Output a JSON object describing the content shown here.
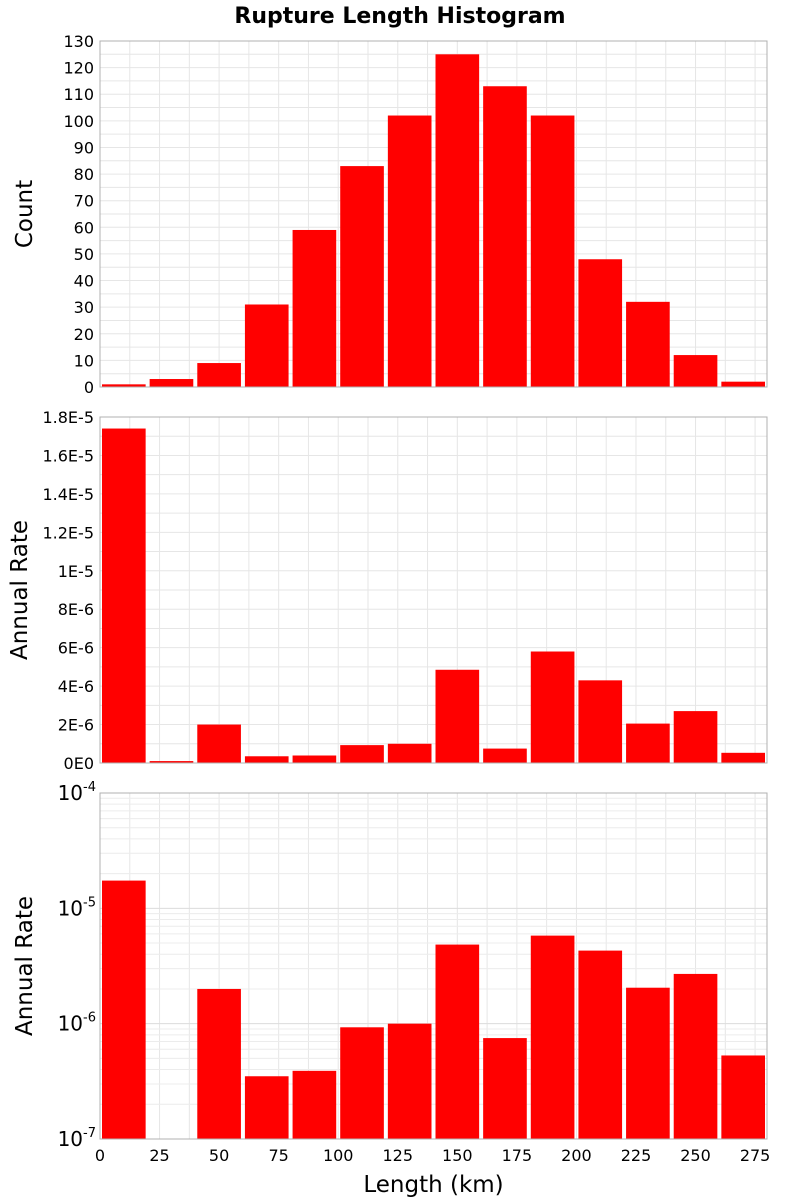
{
  "title": "Rupture Length Histogram",
  "chart_data": [
    {
      "type": "bar",
      "ylabel": "Count",
      "xlabel": "",
      "bin_width": 20,
      "x": [
        10,
        30,
        50,
        70,
        90,
        110,
        130,
        150,
        170,
        190,
        210,
        230,
        250,
        270
      ],
      "values": [
        1,
        3,
        9,
        31,
        59,
        83,
        102,
        125,
        113,
        102,
        48,
        32,
        12,
        2
      ],
      "xlim": [
        0,
        280
      ],
      "ylim": [
        0,
        130
      ],
      "yscale": "linear",
      "y_ticks": [
        0,
        10,
        20,
        30,
        40,
        50,
        60,
        70,
        80,
        90,
        100,
        110,
        120,
        130
      ],
      "y_tick_labels": [
        "0",
        "10",
        "20",
        "30",
        "40",
        "50",
        "60",
        "70",
        "80",
        "90",
        "100",
        "110",
        "120",
        "130"
      ],
      "grid": true,
      "color": "#ff0000"
    },
    {
      "type": "bar",
      "ylabel": "Annual Rate",
      "xlabel": "",
      "bin_width": 20,
      "x": [
        10,
        30,
        50,
        70,
        90,
        110,
        130,
        150,
        170,
        190,
        210,
        230,
        250,
        270
      ],
      "values": [
        1.74e-05,
        1e-07,
        2e-06,
        3.5e-07,
        3.9e-07,
        9.3e-07,
        1e-06,
        4.85e-06,
        7.5e-07,
        5.8e-06,
        4.3e-06,
        2.05e-06,
        2.7e-06,
        5.3e-07
      ],
      "xlim": [
        0,
        280
      ],
      "ylim": [
        0,
        1.8e-05
      ],
      "yscale": "linear",
      "y_ticks": [
        0,
        2e-06,
        4e-06,
        6e-06,
        8e-06,
        1e-05,
        1.2e-05,
        1.4e-05,
        1.6e-05,
        1.8e-05
      ],
      "y_tick_labels": [
        "0E0",
        "2E-6",
        "4E-6",
        "6E-6",
        "8E-6",
        "1E-5",
        "1.2E-5",
        "1.4E-5",
        "1.6E-5",
        "1.8E-5"
      ],
      "grid": true,
      "color": "#ff0000"
    },
    {
      "type": "bar",
      "ylabel": "Annual Rate",
      "xlabel": "Length (km)",
      "bin_width": 20,
      "x": [
        10,
        30,
        50,
        70,
        90,
        110,
        130,
        150,
        170,
        190,
        210,
        230,
        250,
        270
      ],
      "values": [
        1.74e-05,
        1e-07,
        2e-06,
        3.5e-07,
        3.9e-07,
        9.3e-07,
        1e-06,
        4.85e-06,
        7.5e-07,
        5.8e-06,
        4.3e-06,
        2.05e-06,
        2.7e-06,
        5.3e-07
      ],
      "xlim": [
        0,
        280
      ],
      "ylim": [
        1e-07,
        0.0001
      ],
      "yscale": "log",
      "y_ticks": [
        1e-07,
        1e-06,
        1e-05,
        0.0001
      ],
      "y_tick_labels": [
        {
          "base": "10",
          "exp": "-7"
        },
        {
          "base": "10",
          "exp": "-6"
        },
        {
          "base": "10",
          "exp": "-5"
        },
        {
          "base": "10",
          "exp": "-4"
        }
      ],
      "x_ticks": [
        0,
        25,
        50,
        75,
        100,
        125,
        150,
        175,
        200,
        225,
        250,
        275
      ],
      "x_tick_labels": [
        "0",
        "25",
        "50",
        "75",
        "100",
        "125",
        "150",
        "175",
        "200",
        "225",
        "250",
        "275"
      ],
      "grid": true,
      "color": "#ff0000"
    }
  ]
}
